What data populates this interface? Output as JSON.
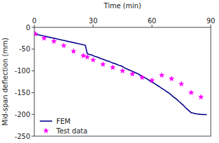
{
  "chart_data": {
    "type": "line",
    "xlabel": "Time (min)",
    "ylabel": "Mid-span deflection (mm)",
    "xlim": [
      0,
      90
    ],
    "ylim": [
      -250,
      0
    ],
    "xticks": [
      0,
      30,
      60,
      90
    ],
    "yticks": [
      0,
      -50,
      -100,
      -150,
      -200,
      -250
    ],
    "legend": "lower left",
    "series": [
      {
        "name": "FEM",
        "type": "line",
        "color": "#00008B",
        "x": [
          0,
          1,
          2,
          3,
          4,
          5,
          6,
          7,
          8,
          9,
          10,
          11,
          12,
          13,
          14,
          15,
          16,
          17,
          18,
          19,
          20,
          21,
          22,
          23,
          24,
          25,
          26,
          27,
          28,
          29,
          30,
          31,
          32,
          33,
          34,
          35,
          36,
          37,
          38,
          39,
          40,
          41,
          42,
          43,
          44,
          45,
          46,
          47,
          48,
          49,
          50,
          51,
          52,
          53,
          54,
          55,
          56,
          57,
          58,
          59,
          60,
          61,
          62,
          63,
          64,
          65,
          66,
          67,
          68,
          69,
          70,
          71,
          72,
          73,
          74,
          75,
          76,
          77,
          78,
          79,
          80,
          81,
          82,
          83,
          84,
          85,
          86,
          87,
          88
        ],
        "values": [
          -15,
          -16,
          -17,
          -18,
          -19,
          -20,
          -21,
          -22,
          -23,
          -24,
          -25,
          -26,
          -27,
          -28,
          -29,
          -30,
          -31,
          -32,
          -33,
          -34,
          -35,
          -36,
          -37,
          -38,
          -39,
          -40,
          -41,
          -60,
          -62,
          -63,
          -65,
          -67,
          -68,
          -70,
          -72,
          -73,
          -75,
          -77,
          -78,
          -80,
          -82,
          -83,
          -85,
          -87,
          -88,
          -90,
          -93,
          -95,
          -97,
          -99,
          -101,
          -103,
          -105,
          -107,
          -110,
          -112,
          -115,
          -117,
          -120,
          -123,
          -126,
          -128,
          -131,
          -134,
          -137,
          -140,
          -143,
          -146,
          -149,
          -152,
          -156,
          -160,
          -163,
          -167,
          -171,
          -175,
          -179,
          -184,
          -188,
          -192,
          -196,
          -197,
          -198,
          -199,
          -199.5,
          -200,
          -200.2,
          -200.4,
          -200.5
        ]
      },
      {
        "name": "Test data",
        "type": "scatter",
        "color": "#FF00FF",
        "marker": "star",
        "x": [
          0.5,
          5,
          10,
          15,
          20,
          25,
          27,
          30,
          35,
          40,
          45,
          50,
          55,
          60,
          65,
          70,
          75,
          80,
          85
        ],
        "values": [
          -15,
          -25,
          -32,
          -42,
          -55,
          -65,
          -68,
          -75,
          -85,
          -92,
          -100,
          -107,
          -115,
          -122,
          -110,
          -118,
          -130,
          -150,
          -160
        ]
      }
    ]
  }
}
